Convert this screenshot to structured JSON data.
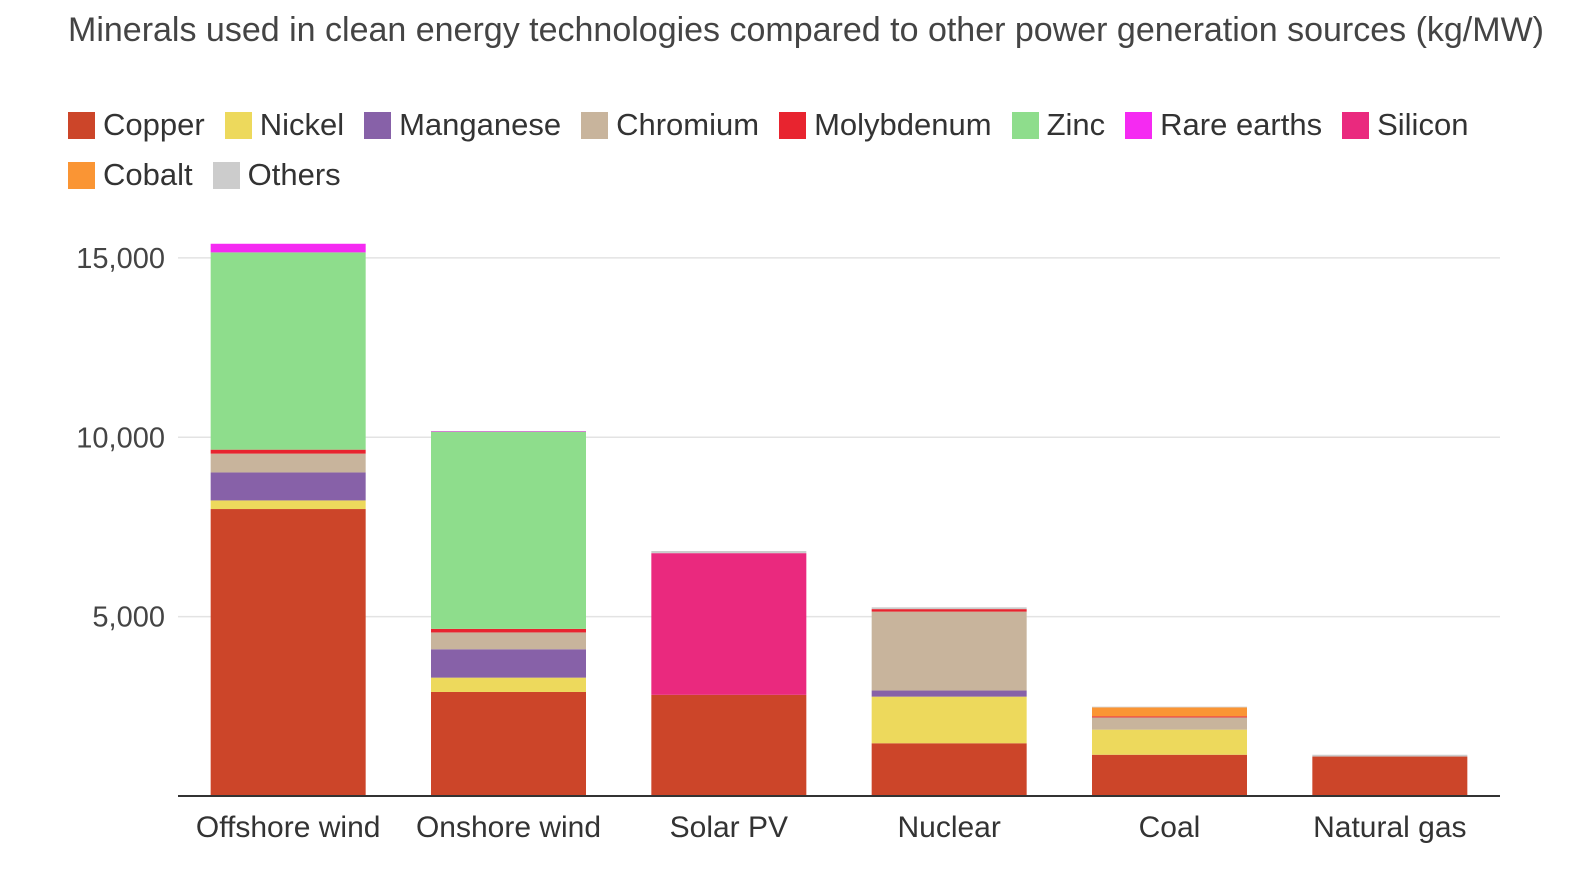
{
  "chart_data": {
    "type": "bar",
    "stacked": true,
    "title": "Minerals used in clean energy technologies compared to other power generation sources (kg/MW)",
    "categories": [
      "Offshore wind",
      "Onshore wind",
      "Solar PV",
      "Nuclear",
      "Coal",
      "Natural gas"
    ],
    "ylim": [
      0,
      15500
    ],
    "yticks": [
      5000,
      10000,
      15000
    ],
    "ytick_labels": [
      "5,000",
      "10,000",
      "15,000"
    ],
    "grid": true,
    "legend_position": "top",
    "series": [
      {
        "name": "Copper",
        "color": "#CC4529",
        "values": [
          8000,
          2900,
          2820,
          1470,
          1150,
          1100
        ]
      },
      {
        "name": "Nickel",
        "color": "#EDD95C",
        "values": [
          240,
          400,
          0,
          1300,
          700,
          0
        ]
      },
      {
        "name": "Manganese",
        "color": "#8761A8",
        "values": [
          780,
          790,
          0,
          170,
          0,
          0
        ]
      },
      {
        "name": "Chromium",
        "color": "#C8B49C",
        "values": [
          525,
          470,
          0,
          2200,
          340,
          0
        ]
      },
      {
        "name": "Molybdenum",
        "color": "#E8242F",
        "values": [
          110,
          99,
          0,
          70,
          30,
          0
        ]
      },
      {
        "name": "Zinc",
        "color": "#8EDD8C",
        "values": [
          5500,
          5500,
          0,
          0,
          0,
          0
        ]
      },
      {
        "name": "Rare earths",
        "color": "#F52AF2",
        "values": [
          240,
          15,
          0,
          0,
          0,
          0
        ]
      },
      {
        "name": "Silicon",
        "color": "#EA297E",
        "values": [
          0,
          0,
          3950,
          0,
          0,
          0
        ]
      },
      {
        "name": "Cobalt",
        "color": "#FA9534",
        "values": [
          0,
          0,
          0,
          0,
          250,
          0
        ]
      },
      {
        "name": "Others",
        "color": "#CCCCCC",
        "values": [
          0,
          0,
          60,
          50,
          20,
          50
        ]
      }
    ]
  }
}
